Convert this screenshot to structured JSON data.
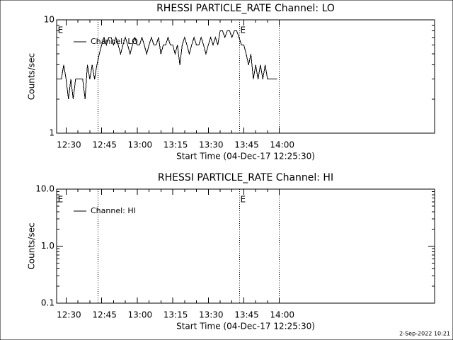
{
  "chart_data": [
    {
      "type": "line",
      "title": "RHESSI PARTICLE_RATE Channel: LO",
      "xlabel": "Start Time (04-Dec-17 12:25:30)",
      "ylabel": "Counts/sec",
      "log_y": true,
      "xlim": [
        746,
        905.5
      ],
      "ylim": [
        1,
        10
      ],
      "xticks": [
        {
          "value": 750,
          "label": "12:30"
        },
        {
          "value": 765,
          "label": "12:45"
        },
        {
          "value": 780,
          "label": "13:00"
        },
        {
          "value": 795,
          "label": "13:15"
        },
        {
          "value": 810,
          "label": "13:30"
        },
        {
          "value": 825,
          "label": "13:45"
        },
        {
          "value": 840,
          "label": "14:00"
        }
      ],
      "yticks": [
        1,
        10
      ],
      "vlines": [
        763.5,
        823.2,
        840
      ],
      "event_labels": [
        {
          "x": 746.5,
          "label": "E"
        },
        {
          "x": 823.5,
          "label": "E"
        }
      ],
      "x": [
        747,
        748,
        749,
        750,
        751,
        752,
        753,
        754,
        755,
        756,
        757,
        758,
        759,
        760,
        761,
        762,
        763,
        764,
        765,
        766,
        767,
        768,
        769,
        770,
        771,
        772,
        773,
        774,
        775,
        776,
        777,
        778,
        779,
        780,
        781,
        782,
        783,
        784,
        785,
        786,
        787,
        788,
        789,
        790,
        791,
        792,
        793,
        794,
        795,
        796,
        797,
        798,
        799,
        800,
        801,
        802,
        803,
        804,
        805,
        806,
        807,
        808,
        809,
        810,
        811,
        812,
        813,
        814,
        815,
        816,
        817,
        818,
        819,
        820,
        821,
        822,
        823,
        824,
        825,
        826,
        827,
        828,
        829,
        830,
        831,
        832,
        833,
        834,
        835,
        836,
        837,
        838,
        839
      ],
      "series": [
        {
          "name": "Channel: LO",
          "color": "#000000",
          "values": [
            3,
            3,
            4,
            3,
            2,
            3,
            2,
            3,
            3,
            3,
            3,
            2,
            4,
            3,
            4,
            3,
            4,
            5,
            6,
            7,
            6,
            7,
            7,
            6,
            7,
            6,
            5,
            6,
            7,
            6,
            5,
            6,
            7,
            6,
            6,
            7,
            6,
            5,
            6,
            7,
            6,
            6,
            7,
            5,
            6,
            6,
            7,
            6,
            6,
            5,
            6,
            4,
            6,
            7,
            6,
            5,
            6,
            7,
            6,
            6,
            7,
            6,
            5,
            6,
            7,
            6,
            7,
            6,
            8,
            8,
            7,
            8,
            8,
            7,
            8,
            8,
            7,
            6,
            6,
            5,
            4,
            5,
            3,
            4,
            3,
            4,
            3,
            4,
            3,
            3,
            3,
            3,
            3
          ]
        }
      ]
    },
    {
      "type": "line",
      "title": "RHESSI PARTICLE_RATE Channel: HI",
      "xlabel": "Start Time (04-Dec-17 12:25:30)",
      "ylabel": "Counts/sec",
      "log_y": true,
      "xlim": [
        746,
        905.5
      ],
      "ylim": [
        0.1,
        10
      ],
      "xticks": [
        {
          "value": 750,
          "label": "12:30"
        },
        {
          "value": 765,
          "label": "12:45"
        },
        {
          "value": 780,
          "label": "13:00"
        },
        {
          "value": 795,
          "label": "13:15"
        },
        {
          "value": 810,
          "label": "13:30"
        },
        {
          "value": 825,
          "label": "13:45"
        },
        {
          "value": 840,
          "label": "14:00"
        }
      ],
      "yticks": [
        {
          "value": 0.1,
          "label": "0.1"
        },
        {
          "value": 1,
          "label": "1.0"
        },
        {
          "value": 10,
          "label": "10.0"
        }
      ],
      "vlines": [
        763.5,
        823.2,
        840
      ],
      "event_labels": [
        {
          "x": 746.5,
          "label": "E"
        },
        {
          "x": 823.5,
          "label": "E"
        }
      ],
      "x": [],
      "series": [
        {
          "name": "Channel: HI",
          "color": "#000000",
          "values": []
        }
      ]
    }
  ],
  "footer": "2-Sep-2022 10:21"
}
